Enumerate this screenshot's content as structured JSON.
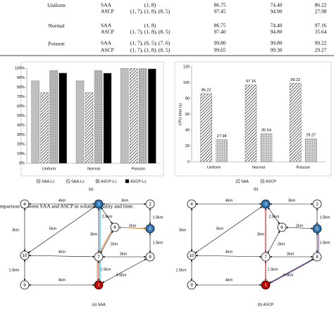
{
  "table": {
    "groups": [
      {
        "name": "Uniform",
        "rows": [
          [
            "SAA",
            "(1, 8)",
            "86.75",
            "74.40",
            "86.22"
          ],
          [
            "ASCP",
            "(1, 7), (1, 8), (8, 5)",
            "97.45",
            "94.90",
            "27.98"
          ]
        ]
      },
      {
        "name": "Normal",
        "rows": [
          [
            "SAA",
            "(1, 8)",
            "86.75",
            "74.40",
            "97.16"
          ],
          [
            "ASCP",
            "(1, 7), (1, 8), (8, 5)",
            "97.40",
            "94.80",
            "35.64"
          ]
        ]
      },
      {
        "name": "Poisson",
        "rows": [
          [
            "SAA",
            "(1, 7), (6, 5), (7, 6)",
            "99.80",
            "99.80",
            "99.22"
          ],
          [
            "ASCP",
            "(1, 7), (1, 8), (8, 5)",
            "99.65",
            "99.30",
            "29.27"
          ]
        ]
      }
    ]
  },
  "chart_data": [
    {
      "type": "bar",
      "panel": "(a)",
      "categories": [
        "Uniform",
        "Normal",
        "Poisson"
      ],
      "series": [
        {
          "name": "SAA-Lc",
          "color": "#bfbfbf",
          "pattern": null,
          "values": [
            86.75,
            86.75,
            99.8
          ]
        },
        {
          "name": "SAA-Ls",
          "color": "#ffffff",
          "pattern": "hatch",
          "values": [
            74.4,
            74.4,
            99.8
          ]
        },
        {
          "name": "ASCP-Lc",
          "color": "#c8c8c8",
          "pattern": "dots",
          "values": [
            97.45,
            97.4,
            99.65
          ]
        },
        {
          "name": "ASCP-Ls",
          "color": "#000000",
          "pattern": null,
          "values": [
            94.9,
            94.8,
            99.3
          ]
        }
      ],
      "ylim": [
        0,
        100
      ],
      "yticks": [
        {
          "value": 0,
          "label": "0%"
        },
        {
          "value": 10,
          "label": "10%"
        },
        {
          "value": 20,
          "label": "20%"
        },
        {
          "value": 30,
          "label": "30%"
        },
        {
          "value": 40,
          "label": "40%"
        },
        {
          "value": 50,
          "label": "50%"
        },
        {
          "value": 60,
          "label": "60%"
        },
        {
          "value": 70,
          "label": "70%"
        },
        {
          "value": 80,
          "label": "80%"
        },
        {
          "value": 90,
          "label": "90%"
        },
        {
          "value": 100,
          "label": "100%"
        }
      ],
      "grid": false
    },
    {
      "type": "bar",
      "panel": "(b)",
      "y_label": "CPU time (s)",
      "categories": [
        "Uniform",
        "Normal",
        "Poisson"
      ],
      "series": [
        {
          "name": "SAA",
          "color": "#ffffff",
          "pattern": "hatch",
          "values": [
            86.22,
            97.16,
            99.22
          ]
        },
        {
          "name": "ASCP",
          "color": "#e0e0e0",
          "pattern": "dots",
          "values": [
            27.98,
            35.64,
            29.27
          ]
        }
      ],
      "ylim": [
        0,
        120
      ],
      "yticks": [
        0,
        20,
        40,
        60,
        80,
        100,
        120
      ],
      "grid": false,
      "data_labels": true
    }
  ],
  "figure_caption": "mparison between SAA and ASCP in solution quality and time.",
  "network": {
    "nodes": [
      "1",
      "2",
      "3",
      "4",
      "5",
      "6",
      "7",
      "8",
      "9",
      "10"
    ],
    "edges": [
      "4km",
      "3km",
      "3km",
      "5km",
      "2.5km",
      "3km",
      "2km",
      "1.5km",
      "1.5km",
      "4km",
      "2km",
      "3km",
      "1.5km",
      "4km",
      "1.5km",
      "4.5km"
    ]
  },
  "diagrams": [
    "(a) SAA",
    "(b) ASCP"
  ]
}
